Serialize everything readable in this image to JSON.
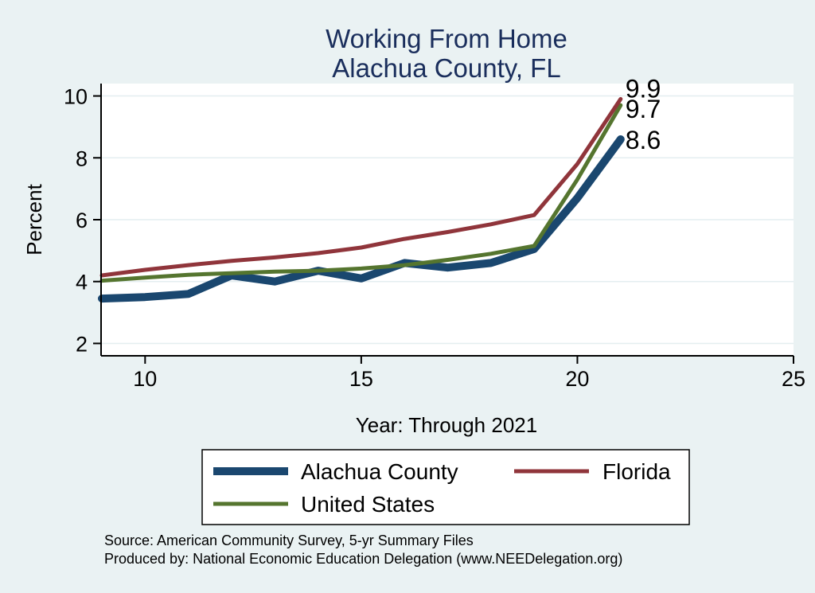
{
  "chart_data": {
    "type": "line",
    "title": [
      "Working From Home",
      "Alachua County, FL"
    ],
    "xlabel": "Year: Through 2021",
    "ylabel": "Percent",
    "xlim": [
      9,
      25
    ],
    "ylim": [
      1.6,
      10.4
    ],
    "xticks": [
      10,
      15,
      20,
      25
    ],
    "yticks": [
      2,
      4,
      6,
      8,
      10
    ],
    "grid": "horizontal",
    "legend_position": "bottom",
    "series": [
      {
        "name": "Alachua County",
        "color": "#1a476f",
        "x": [
          9,
          10,
          11,
          12,
          13,
          14,
          15,
          16,
          17,
          18,
          19,
          20,
          21
        ],
        "values": [
          3.45,
          3.5,
          3.6,
          4.2,
          4.0,
          4.35,
          4.1,
          4.6,
          4.45,
          4.6,
          5.05,
          6.7,
          8.6
        ],
        "end_label": "8.6"
      },
      {
        "name": "Florida",
        "color": "#90353b",
        "x": [
          9,
          10,
          11,
          12,
          13,
          14,
          15,
          16,
          17,
          18,
          19,
          20,
          21
        ],
        "values": [
          4.2,
          4.38,
          4.53,
          4.67,
          4.78,
          4.92,
          5.1,
          5.38,
          5.6,
          5.85,
          6.15,
          7.8,
          9.9
        ],
        "end_label": "9.9"
      },
      {
        "name": "United States",
        "color": "#55752f",
        "x": [
          9,
          10,
          11,
          12,
          13,
          14,
          15,
          16,
          17,
          18,
          19,
          20,
          21
        ],
        "values": [
          4.03,
          4.13,
          4.22,
          4.27,
          4.32,
          4.35,
          4.42,
          4.53,
          4.7,
          4.9,
          5.15,
          7.3,
          9.7
        ],
        "end_label": "9.7"
      }
    ],
    "source_lines": [
      "Source: American Community Survey, 5-yr Summary Files",
      "Produced by: National Economic Education Delegation (www.NEEDelegation.org)"
    ]
  }
}
